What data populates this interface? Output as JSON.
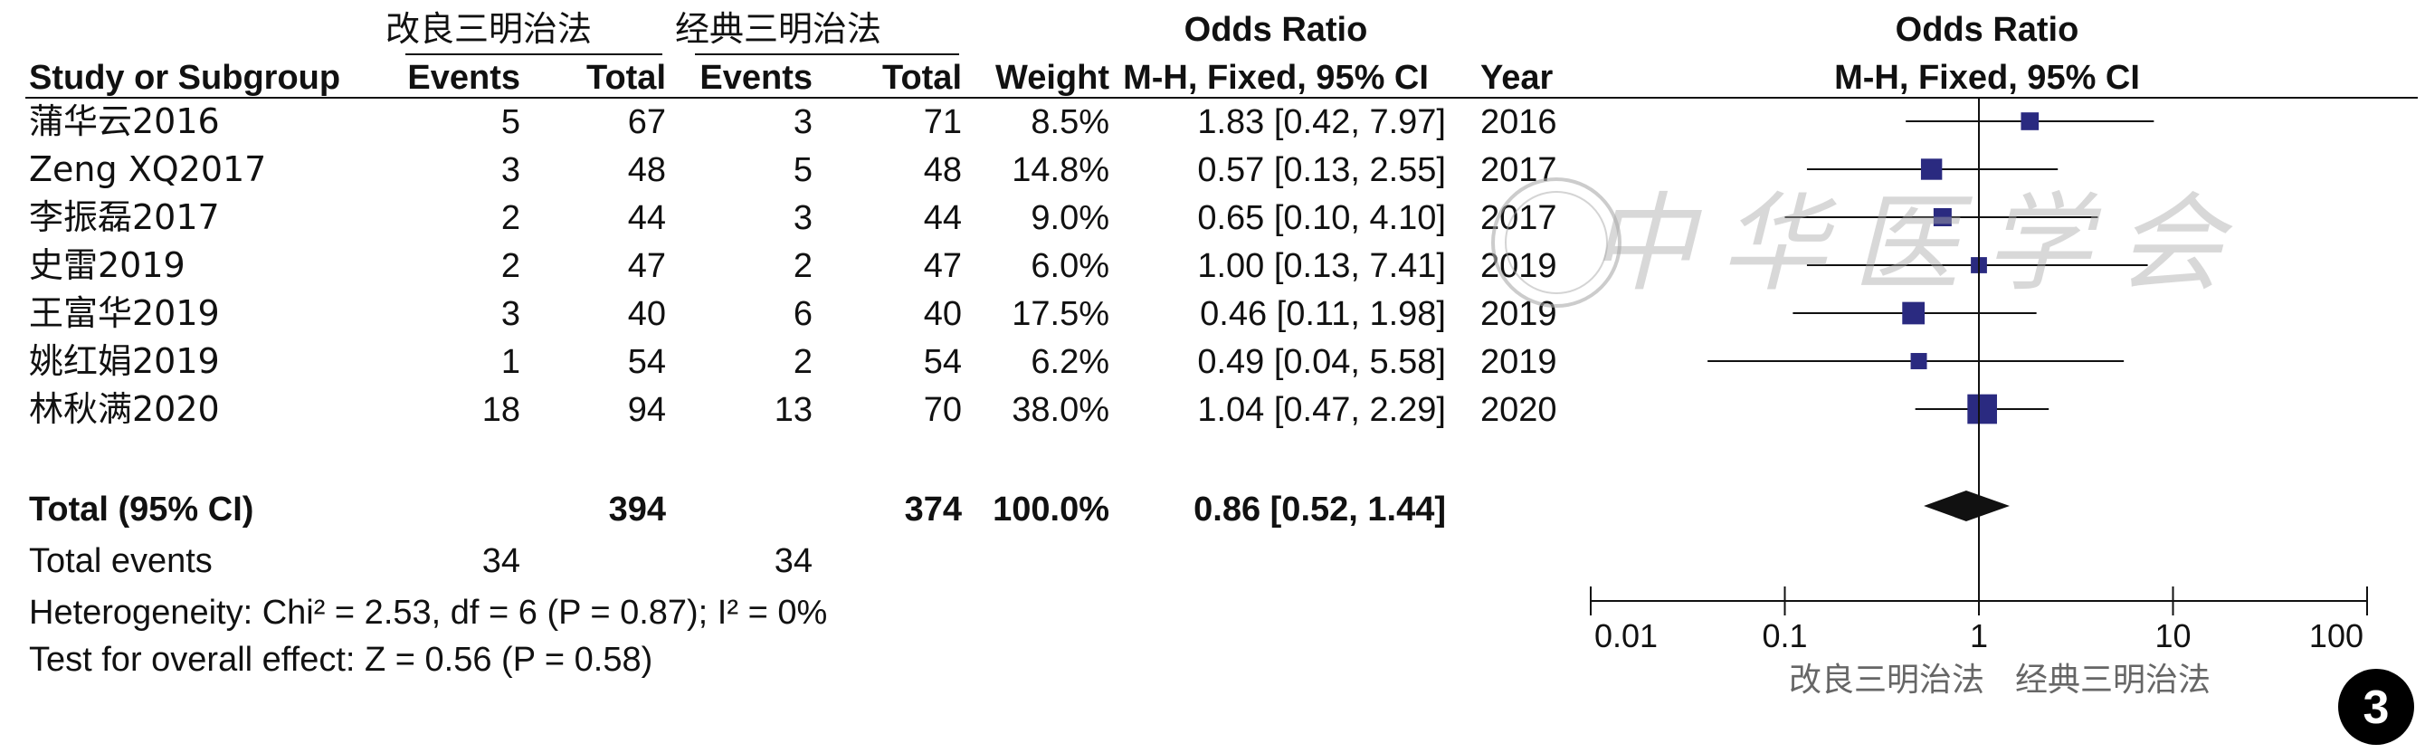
{
  "chart_data": {
    "type": "forest",
    "group_labels": {
      "experimental": "改良三明治法",
      "control": "经典三明治法"
    },
    "odds_ratio_header": "Odds Ratio",
    "column_headers": {
      "study": "Study or Subgroup",
      "events": "Events",
      "total": "Total",
      "weight": "Weight",
      "ci": "M-H, Fixed, 95% CI",
      "year": "Year"
    },
    "plot_header": {
      "title": "Odds Ratio",
      "subtitle": "M-H, Fixed, 95% CI"
    },
    "studies": [
      {
        "name": "蒲华云2016",
        "exp_events": "5",
        "exp_total": "67",
        "ctl_events": "3",
        "ctl_total": "71",
        "weight": "8.5%",
        "ci_text": "1.83 [0.42, 7.97]",
        "year": "2016",
        "or": 1.83,
        "lo": 0.42,
        "hi": 7.97,
        "w": 8.5
      },
      {
        "name": "Zeng XQ2017",
        "exp_events": "3",
        "exp_total": "48",
        "ctl_events": "5",
        "ctl_total": "48",
        "weight": "14.8%",
        "ci_text": "0.57 [0.13, 2.55]",
        "year": "2017",
        "or": 0.57,
        "lo": 0.13,
        "hi": 2.55,
        "w": 14.8
      },
      {
        "name": "李振磊2017",
        "exp_events": "2",
        "exp_total": "44",
        "ctl_events": "3",
        "ctl_total": "44",
        "weight": "9.0%",
        "ci_text": "0.65 [0.10, 4.10]",
        "year": "2017",
        "or": 0.65,
        "lo": 0.1,
        "hi": 4.1,
        "w": 9.0
      },
      {
        "name": "史雷2019",
        "exp_events": "2",
        "exp_total": "47",
        "ctl_events": "2",
        "ctl_total": "47",
        "weight": "6.0%",
        "ci_text": "1.00 [0.13, 7.41]",
        "year": "2019",
        "or": 1.0,
        "lo": 0.13,
        "hi": 7.41,
        "w": 6.0
      },
      {
        "name": "王富华2019",
        "exp_events": "3",
        "exp_total": "40",
        "ctl_events": "6",
        "ctl_total": "40",
        "weight": "17.5%",
        "ci_text": "0.46 [0.11, 1.98]",
        "year": "2019",
        "or": 0.46,
        "lo": 0.11,
        "hi": 1.98,
        "w": 17.5
      },
      {
        "name": "姚红娟2019",
        "exp_events": "1",
        "exp_total": "54",
        "ctl_events": "2",
        "ctl_total": "54",
        "weight": "6.2%",
        "ci_text": "0.49 [0.04, 5.58]",
        "year": "2019",
        "or": 0.49,
        "lo": 0.04,
        "hi": 5.58,
        "w": 6.2
      },
      {
        "name": "林秋满2020",
        "exp_events": "18",
        "exp_total": "94",
        "ctl_events": "13",
        "ctl_total": "70",
        "weight": "38.0%",
        "ci_text": "1.04 [0.47, 2.29]",
        "year": "2020",
        "or": 1.04,
        "lo": 0.47,
        "hi": 2.29,
        "w": 38.0
      }
    ],
    "total": {
      "label": "Total (95% CI)",
      "exp_total": "394",
      "ctl_total": "374",
      "weight": "100.0%",
      "ci_text": "0.86 [0.52, 1.44]",
      "or": 0.86,
      "lo": 0.52,
      "hi": 1.44
    },
    "total_events": {
      "label": "Total events",
      "exp": "34",
      "ctl": "34"
    },
    "heterogeneity": "Heterogeneity: Chi² = 2.53, df = 6 (P = 0.87); I² = 0%",
    "overall_effect": "Test for overall effect: Z = 0.56 (P = 0.58)",
    "axis": {
      "scale": "log",
      "range": [
        0.01,
        100
      ],
      "ticks": [
        0.01,
        0.1,
        1,
        10,
        100
      ],
      "tick_labels": [
        "0.01",
        "0.1",
        "1",
        "10",
        "100"
      ],
      "favours_left": "改良三明治法",
      "favours_right": "经典三明治法"
    },
    "watermark": "中华医学会",
    "figure_number": "3",
    "colors": {
      "marker": "#2a2a80",
      "text": "#111111",
      "axis_label": "#666666",
      "watermark": "#aaaaaa"
    }
  }
}
